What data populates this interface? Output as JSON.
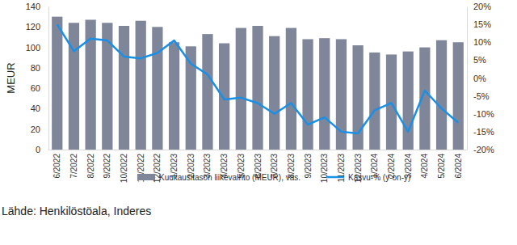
{
  "chart_data": {
    "type": "bar",
    "y_label": "MEUR",
    "annotations": [
      "Lähde: Henkilöstöala, Inderes"
    ],
    "categories": [
      "6/2022",
      "7/2022",
      "8/2022",
      "9/2022",
      "10/2022",
      "11/2022",
      "12/2022",
      "1/2023",
      "2/2023",
      "3/2023",
      "4/2023",
      "5/2023",
      "6/2023",
      "7/2023",
      "8/2023",
      "9/2023",
      "10/2023",
      "11/2023",
      "12/2023",
      "1/2024",
      "2/2024",
      "3/2024",
      "4/2024",
      "5/2024",
      "6/2024"
    ],
    "series": [
      {
        "name": "Kuukausitason liikevaihto (MEUR), vas.",
        "type": "bar",
        "color": "#7f8699",
        "values": [
          130,
          124,
          127,
          124,
          121,
          126,
          120,
          105,
          101,
          113,
          104,
          119,
          121,
          111,
          119,
          108,
          109,
          108,
          102,
          95,
          93,
          96,
          100,
          107,
          105
        ]
      },
      {
        "name": "Kasvu-% (y-on-y)",
        "type": "line",
        "axis": "y2",
        "color": "#1a8fe6",
        "values": [
          15,
          7.5,
          11,
          10.5,
          6,
          5.5,
          7,
          10.5,
          4,
          1,
          -6,
          -5.5,
          -7,
          -10,
          -7,
          -13,
          -11,
          -15,
          -15.5,
          -9,
          -7,
          -15,
          -3.5,
          -8.5,
          -12.5
        ]
      }
    ],
    "ylim": [
      0,
      140
    ],
    "yticks": [
      0,
      20,
      40,
      60,
      80,
      100,
      120,
      140
    ],
    "y2lim": [
      -20,
      20
    ],
    "y2ticks": [
      {
        "value": -20,
        "label": "-20%"
      },
      {
        "value": -15,
        "label": "-15%"
      },
      {
        "value": -10,
        "label": "-10%"
      },
      {
        "value": -5,
        "label": "-5%"
      },
      {
        "value": 0,
        "label": "0%"
      },
      {
        "value": 5,
        "label": "5%"
      },
      {
        "value": 10,
        "label": "10%"
      },
      {
        "value": 15,
        "label": "15%"
      },
      {
        "value": 20,
        "label": "20%"
      }
    ],
    "grid": false,
    "legend": "bottom"
  }
}
